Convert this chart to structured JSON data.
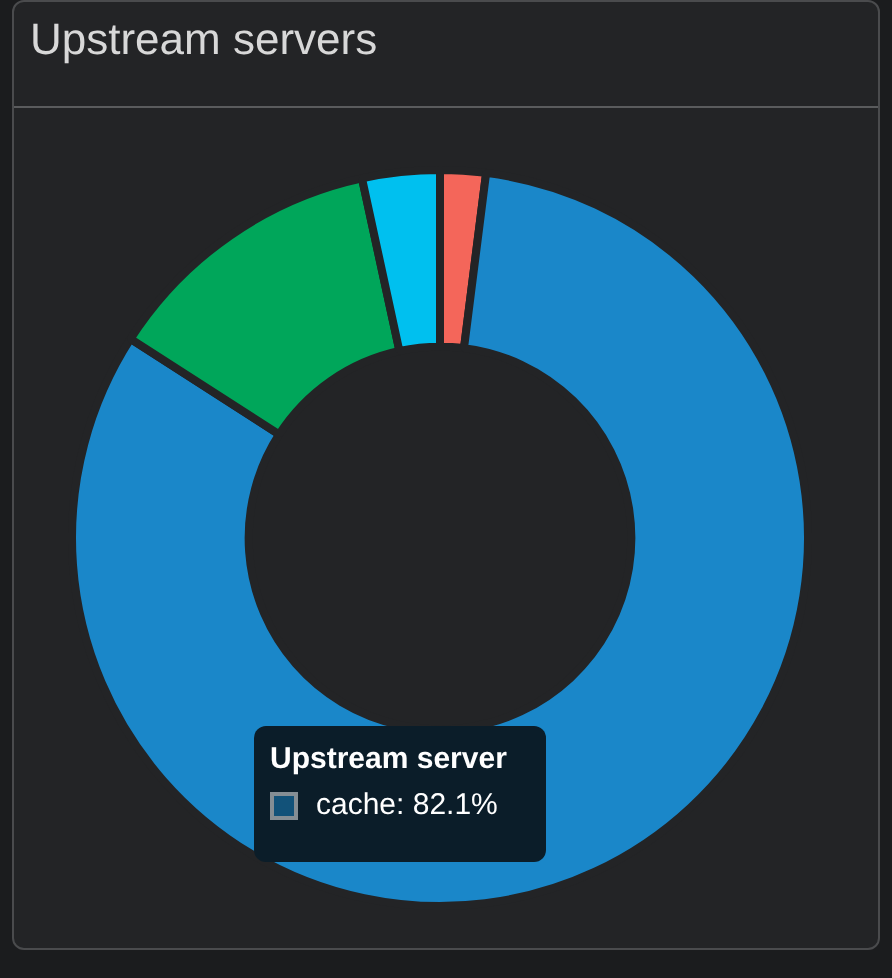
{
  "chart_data": {
    "type": "donut",
    "title": "Upstream servers",
    "categories": [
      null,
      "cache",
      null,
      null
    ],
    "values": [
      2.0,
      82.1,
      12.5,
      3.4
    ],
    "colors": [
      "#f4665a",
      "#1a87c9",
      "#00a65a",
      "#00c0ef"
    ],
    "value_labels": [
      null,
      "82.1%",
      null,
      null
    ],
    "annotations": [
      "Upstream server"
    ],
    "legend": "bottom"
  }
}
